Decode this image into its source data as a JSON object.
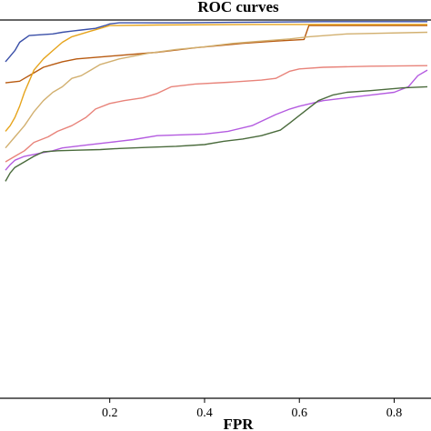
{
  "chart_data": {
    "type": "line",
    "title": "ROC curves",
    "xlabel": "FPR",
    "ylabel": "",
    "xlim": [
      -0.02,
      0.87
    ],
    "ylim": [
      0.32,
      1.0
    ],
    "x_ticks": [
      {
        "value": 0.2,
        "label": "0.2"
      },
      {
        "value": 0.4,
        "label": "0.4"
      },
      {
        "value": 0.6,
        "label": "0.6"
      },
      {
        "value": 0.8,
        "label": "0.8"
      }
    ],
    "grid": false,
    "legend": "none",
    "series": [
      {
        "color": "#3a4fa8",
        "points": [
          [
            -0.02,
            0.925
          ],
          [
            -0.01,
            0.935
          ],
          [
            0.0,
            0.945
          ],
          [
            0.01,
            0.96
          ],
          [
            0.03,
            0.972
          ],
          [
            0.08,
            0.975
          ],
          [
            0.1,
            0.978
          ],
          [
            0.12,
            0.98
          ],
          [
            0.14,
            0.982
          ],
          [
            0.17,
            0.985
          ],
          [
            0.19,
            0.99
          ],
          [
            0.2,
            0.993
          ],
          [
            0.22,
            0.995
          ],
          [
            0.35,
            0.995
          ],
          [
            0.5,
            0.996
          ],
          [
            0.65,
            0.997
          ],
          [
            0.87,
            0.997
          ]
        ]
      },
      {
        "color": "#b85a10",
        "points": [
          [
            -0.02,
            0.887
          ],
          [
            0.01,
            0.89
          ],
          [
            0.02,
            0.895
          ],
          [
            0.04,
            0.905
          ],
          [
            0.06,
            0.915
          ],
          [
            0.08,
            0.92
          ],
          [
            0.1,
            0.925
          ],
          [
            0.13,
            0.93
          ],
          [
            0.2,
            0.935
          ],
          [
            0.3,
            0.942
          ],
          [
            0.38,
            0.95
          ],
          [
            0.48,
            0.958
          ],
          [
            0.55,
            0.962
          ],
          [
            0.61,
            0.965
          ],
          [
            0.62,
            0.99
          ],
          [
            0.87,
            0.99
          ]
        ]
      },
      {
        "color": "#e6a41c",
        "points": [
          [
            -0.02,
            0.8
          ],
          [
            -0.01,
            0.81
          ],
          [
            0.0,
            0.825
          ],
          [
            0.01,
            0.845
          ],
          [
            0.02,
            0.87
          ],
          [
            0.03,
            0.89
          ],
          [
            0.04,
            0.91
          ],
          [
            0.06,
            0.93
          ],
          [
            0.08,
            0.945
          ],
          [
            0.1,
            0.96
          ],
          [
            0.12,
            0.97
          ],
          [
            0.14,
            0.975
          ],
          [
            0.16,
            0.98
          ],
          [
            0.18,
            0.985
          ],
          [
            0.2,
            0.99
          ],
          [
            0.3,
            0.991
          ],
          [
            0.5,
            0.992
          ],
          [
            0.87,
            0.992
          ]
        ]
      },
      {
        "color": "#d2b070",
        "points": [
          [
            -0.02,
            0.77
          ],
          [
            0.0,
            0.79
          ],
          [
            0.02,
            0.81
          ],
          [
            0.04,
            0.835
          ],
          [
            0.06,
            0.855
          ],
          [
            0.08,
            0.87
          ],
          [
            0.1,
            0.88
          ],
          [
            0.12,
            0.895
          ],
          [
            0.14,
            0.9
          ],
          [
            0.16,
            0.91
          ],
          [
            0.18,
            0.92
          ],
          [
            0.22,
            0.93
          ],
          [
            0.28,
            0.94
          ],
          [
            0.34,
            0.947
          ],
          [
            0.4,
            0.952
          ],
          [
            0.46,
            0.958
          ],
          [
            0.52,
            0.962
          ],
          [
            0.58,
            0.966
          ],
          [
            0.62,
            0.97
          ],
          [
            0.7,
            0.975
          ],
          [
            0.87,
            0.978
          ]
        ]
      },
      {
        "color": "#e8837a",
        "points": [
          [
            -0.02,
            0.745
          ],
          [
            0.0,
            0.755
          ],
          [
            0.02,
            0.765
          ],
          [
            0.04,
            0.78
          ],
          [
            0.07,
            0.79
          ],
          [
            0.09,
            0.8
          ],
          [
            0.12,
            0.81
          ],
          [
            0.15,
            0.825
          ],
          [
            0.17,
            0.84
          ],
          [
            0.2,
            0.85
          ],
          [
            0.23,
            0.855
          ],
          [
            0.27,
            0.86
          ],
          [
            0.3,
            0.868
          ],
          [
            0.33,
            0.88
          ],
          [
            0.38,
            0.885
          ],
          [
            0.45,
            0.888
          ],
          [
            0.52,
            0.892
          ],
          [
            0.55,
            0.895
          ],
          [
            0.58,
            0.908
          ],
          [
            0.6,
            0.912
          ],
          [
            0.65,
            0.915
          ],
          [
            0.75,
            0.917
          ],
          [
            0.87,
            0.918
          ]
        ]
      },
      {
        "color": "#b45be0",
        "points": [
          [
            -0.02,
            0.73
          ],
          [
            -0.01,
            0.74
          ],
          [
            0.0,
            0.748
          ],
          [
            0.02,
            0.755
          ],
          [
            0.05,
            0.76
          ],
          [
            0.08,
            0.765
          ],
          [
            0.1,
            0.77
          ],
          [
            0.15,
            0.775
          ],
          [
            0.2,
            0.78
          ],
          [
            0.25,
            0.785
          ],
          [
            0.3,
            0.792
          ],
          [
            0.4,
            0.795
          ],
          [
            0.45,
            0.8
          ],
          [
            0.5,
            0.81
          ],
          [
            0.55,
            0.83
          ],
          [
            0.58,
            0.84
          ],
          [
            0.6,
            0.845
          ],
          [
            0.65,
            0.855
          ],
          [
            0.7,
            0.86
          ],
          [
            0.75,
            0.865
          ],
          [
            0.8,
            0.87
          ],
          [
            0.83,
            0.88
          ],
          [
            0.85,
            0.9
          ],
          [
            0.87,
            0.91
          ]
        ]
      },
      {
        "color": "#4a6b3c",
        "points": [
          [
            -0.02,
            0.71
          ],
          [
            -0.01,
            0.725
          ],
          [
            0.0,
            0.735
          ],
          [
            0.02,
            0.745
          ],
          [
            0.04,
            0.755
          ],
          [
            0.06,
            0.763
          ],
          [
            0.09,
            0.765
          ],
          [
            0.13,
            0.766
          ],
          [
            0.18,
            0.767
          ],
          [
            0.22,
            0.769
          ],
          [
            0.28,
            0.771
          ],
          [
            0.34,
            0.773
          ],
          [
            0.4,
            0.776
          ],
          [
            0.44,
            0.782
          ],
          [
            0.48,
            0.786
          ],
          [
            0.52,
            0.792
          ],
          [
            0.56,
            0.802
          ],
          [
            0.58,
            0.815
          ],
          [
            0.61,
            0.835
          ],
          [
            0.64,
            0.855
          ],
          [
            0.67,
            0.865
          ],
          [
            0.7,
            0.87
          ],
          [
            0.75,
            0.873
          ],
          [
            0.82,
            0.878
          ],
          [
            0.87,
            0.88
          ]
        ]
      }
    ]
  }
}
